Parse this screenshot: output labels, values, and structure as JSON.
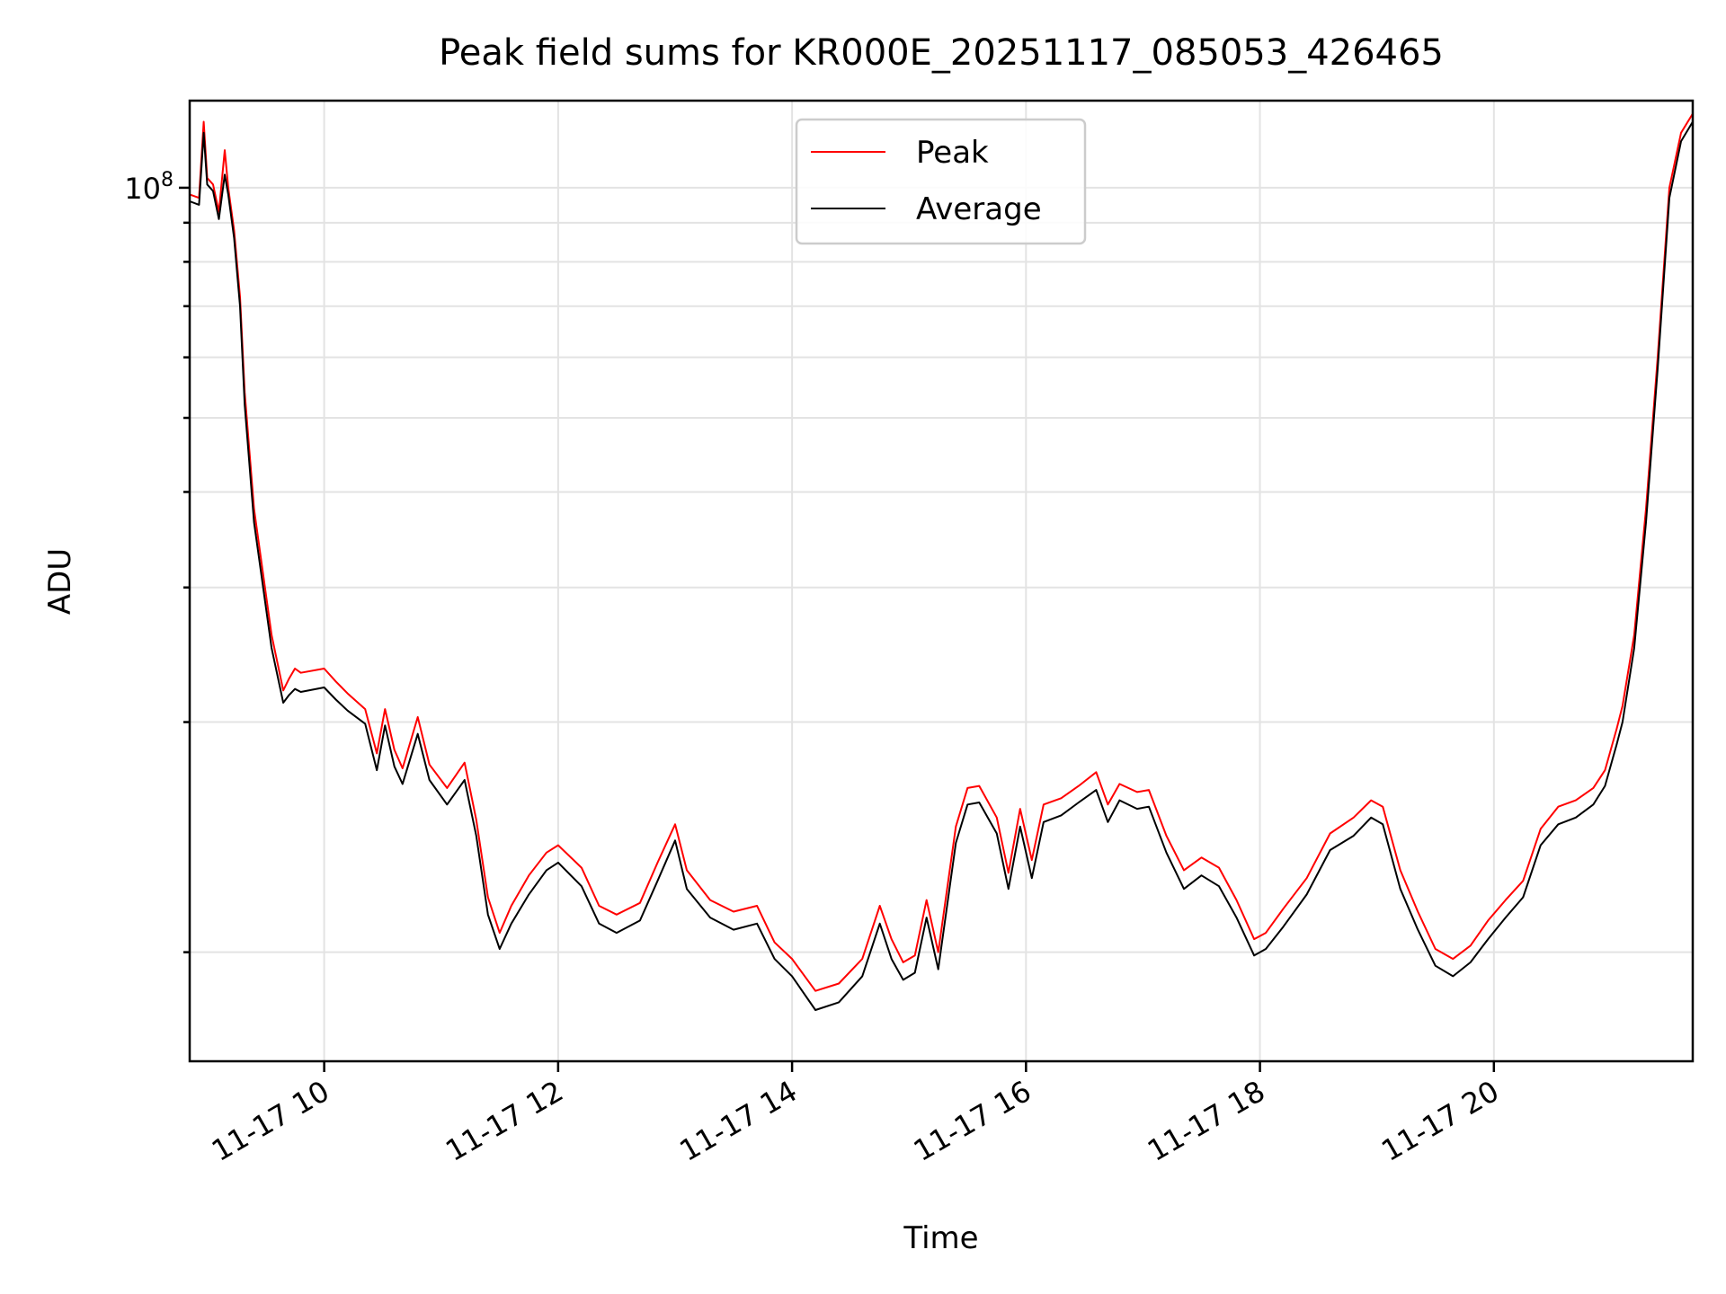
{
  "chart_data": {
    "type": "line",
    "title": "Peak field sums for KR000E_20251117_085053_426465",
    "xlabel": "Time",
    "ylabel": "ADU",
    "yscale": "log",
    "xlim": [
      8.85,
      21.7
    ],
    "ylim": [
      7200000,
      130000000
    ],
    "x_ticks": [
      {
        "value": 10,
        "label": "11-17 10"
      },
      {
        "value": 12,
        "label": "11-17 12"
      },
      {
        "value": 14,
        "label": "11-17 14"
      },
      {
        "value": 16,
        "label": "11-17 16"
      },
      {
        "value": 18,
        "label": "11-17 18"
      },
      {
        "value": 20,
        "label": "11-17 20"
      }
    ],
    "y_major_ticks": [
      {
        "value": 100000000,
        "base": "10",
        "exp": "8"
      }
    ],
    "y_minor_ticks": [
      10000000,
      20000000,
      30000000,
      40000000,
      50000000,
      60000000,
      70000000,
      80000000,
      90000000
    ],
    "grid": true,
    "legend": {
      "location": "upper center",
      "entries": [
        "Peak",
        "Average"
      ]
    },
    "series": [
      {
        "name": "Peak",
        "color": "#ff0000",
        "x": [
          8.85,
          8.93,
          8.97,
          9.0,
          9.05,
          9.1,
          9.15,
          9.18,
          9.23,
          9.28,
          9.32,
          9.4,
          9.55,
          9.65,
          9.7,
          9.75,
          9.8,
          10.0,
          10.1,
          10.2,
          10.35,
          10.45,
          10.52,
          10.6,
          10.67,
          10.8,
          10.9,
          11.05,
          11.2,
          11.3,
          11.4,
          11.5,
          11.6,
          11.75,
          11.9,
          12.0,
          12.2,
          12.35,
          12.5,
          12.7,
          12.85,
          13.0,
          13.1,
          13.3,
          13.5,
          13.7,
          13.85,
          14.0,
          14.2,
          14.4,
          14.6,
          14.75,
          14.85,
          14.95,
          15.05,
          15.15,
          15.25,
          15.4,
          15.5,
          15.6,
          15.75,
          15.85,
          15.95,
          16.05,
          16.15,
          16.3,
          16.45,
          16.6,
          16.7,
          16.8,
          16.95,
          17.05,
          17.2,
          17.35,
          17.5,
          17.65,
          17.8,
          17.95,
          18.05,
          18.2,
          18.4,
          18.6,
          18.8,
          18.95,
          19.05,
          19.2,
          19.35,
          19.5,
          19.65,
          19.8,
          19.95,
          20.1,
          20.25,
          20.4,
          20.55,
          20.7,
          20.85,
          20.95,
          21.05,
          21.1,
          21.2,
          21.3,
          21.4,
          21.5,
          21.6,
          21.7
        ],
        "values": [
          98000000,
          97000000,
          122000000,
          103000000,
          101000000,
          93000000,
          112000000,
          100000000,
          88000000,
          72000000,
          54000000,
          38000000,
          26000000,
          22000000,
          22800000,
          23500000,
          23200000,
          23500000,
          22600000,
          21800000,
          20800000,
          18200000,
          20800000,
          18400000,
          17400000,
          20300000,
          17600000,
          16400000,
          17700000,
          14900000,
          11800000,
          10600000,
          11500000,
          12600000,
          13500000,
          13800000,
          12900000,
          11500000,
          11200000,
          11600000,
          13100000,
          14700000,
          12800000,
          11700000,
          11300000,
          11500000,
          10300000,
          9800000,
          8900000,
          9100000,
          9800000,
          11500000,
          10400000,
          9700000,
          9900000,
          11700000,
          10000000,
          14600000,
          16400000,
          16500000,
          15000000,
          12700000,
          15400000,
          13200000,
          15600000,
          15900000,
          16500000,
          17200000,
          15600000,
          16600000,
          16200000,
          16300000,
          14200000,
          12800000,
          13300000,
          12900000,
          11700000,
          10400000,
          10600000,
          11400000,
          12500000,
          14300000,
          15000000,
          15800000,
          15500000,
          12800000,
          11300000,
          10100000,
          9800000,
          10200000,
          11000000,
          11700000,
          12400000,
          14500000,
          15500000,
          15800000,
          16400000,
          17300000,
          19600000,
          21000000,
          26000000,
          38000000,
          60000000,
          100000000,
          118000000,
          125000000
        ]
      },
      {
        "name": "Average",
        "color": "#000000",
        "x": [
          8.85,
          8.93,
          8.97,
          9.0,
          9.05,
          9.1,
          9.15,
          9.18,
          9.23,
          9.28,
          9.32,
          9.4,
          9.55,
          9.65,
          9.7,
          9.75,
          9.8,
          10.0,
          10.1,
          10.2,
          10.35,
          10.45,
          10.52,
          10.6,
          10.67,
          10.8,
          10.9,
          11.05,
          11.2,
          11.3,
          11.4,
          11.5,
          11.6,
          11.75,
          11.9,
          12.0,
          12.2,
          12.35,
          12.5,
          12.7,
          12.85,
          13.0,
          13.1,
          13.3,
          13.5,
          13.7,
          13.85,
          14.0,
          14.2,
          14.4,
          14.6,
          14.75,
          14.85,
          14.95,
          15.05,
          15.15,
          15.25,
          15.4,
          15.5,
          15.6,
          15.75,
          15.85,
          15.95,
          16.05,
          16.15,
          16.3,
          16.45,
          16.6,
          16.7,
          16.8,
          16.95,
          17.05,
          17.2,
          17.35,
          17.5,
          17.65,
          17.8,
          17.95,
          18.05,
          18.2,
          18.4,
          18.6,
          18.8,
          18.95,
          19.05,
          19.2,
          19.35,
          19.5,
          19.65,
          19.8,
          19.95,
          20.1,
          20.25,
          20.4,
          20.55,
          20.7,
          20.85,
          20.95,
          21.05,
          21.1,
          21.2,
          21.3,
          21.4,
          21.5,
          21.6,
          21.7
        ],
        "values": [
          96000000,
          95000000,
          118000000,
          101000000,
          99000000,
          91000000,
          104000000,
          98000000,
          86000000,
          70000000,
          52000000,
          36500000,
          25000000,
          21200000,
          21700000,
          22100000,
          21900000,
          22200000,
          21400000,
          20700000,
          19900000,
          17300000,
          19800000,
          17500000,
          16600000,
          19300000,
          16800000,
          15600000,
          16800000,
          14200000,
          11200000,
          10100000,
          10900000,
          11900000,
          12800000,
          13100000,
          12200000,
          10900000,
          10600000,
          11000000,
          12400000,
          14000000,
          12100000,
          11100000,
          10700000,
          10900000,
          9800000,
          9300000,
          8400000,
          8600000,
          9300000,
          10900000,
          9800000,
          9200000,
          9400000,
          11100000,
          9500000,
          13900000,
          15600000,
          15700000,
          14300000,
          12100000,
          14600000,
          12500000,
          14800000,
          15100000,
          15700000,
          16300000,
          14800000,
          15800000,
          15400000,
          15500000,
          13500000,
          12100000,
          12600000,
          12200000,
          11100000,
          9900000,
          10100000,
          10800000,
          11900000,
          13600000,
          14200000,
          15000000,
          14700000,
          12100000,
          10700000,
          9600000,
          9300000,
          9700000,
          10400000,
          11100000,
          11800000,
          13800000,
          14700000,
          15000000,
          15600000,
          16500000,
          18700000,
          20000000,
          25000000,
          36500000,
          58000000,
          97000000,
          115000000,
          122000000
        ]
      }
    ]
  }
}
